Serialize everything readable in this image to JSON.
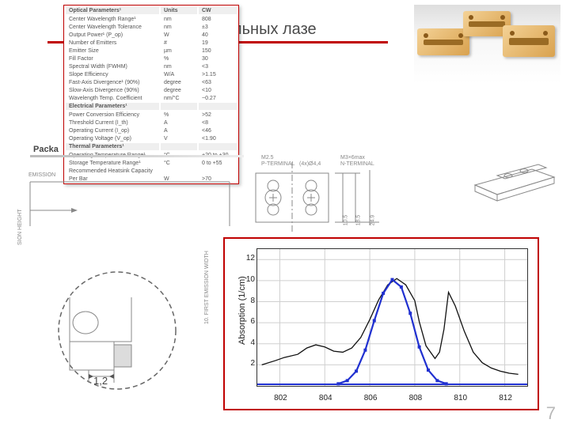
{
  "title_text": "вердотельных лазе",
  "page_number": "7",
  "colors": {
    "accent": "#c00000",
    "spec_text": "#555",
    "title_text": "#4a4a4a"
  },
  "package_label": "Packa",
  "drawing_labels": {
    "emission": "EMISSION",
    "sion_height": "SION HEIGHT",
    "first_emission_width": "10. FIRST EMISSION WIDTH",
    "inset_dim": "1,2",
    "p_terminal": "P-TERMINAL",
    "n_terminal": "N-TERMINAL",
    "m25": "M2.5",
    "m3": "M3×6max",
    "d44": "(4x)Ø4,4",
    "dim_105": "10.5",
    "dim_185": "18.5",
    "dim_249": "24.9"
  },
  "spec": {
    "sections": [
      {
        "title": "Optical Parameters¹",
        "unitHeader": "Units",
        "valHeader": "CW",
        "rows": [
          [
            "Center Wavelength Range¹",
            "nm",
            "808"
          ],
          [
            "Center Wavelength Tolerance",
            "nm",
            "±3"
          ],
          [
            "Output Power¹ (P_op)",
            "W",
            "40"
          ],
          [
            "Number of Emitters",
            "#",
            "19"
          ],
          [
            "Emitter Size",
            "µm",
            "150"
          ],
          [
            "Fill Factor",
            "%",
            "30"
          ],
          [
            "Spectral Width (FWHM)",
            "nm",
            "<3"
          ],
          [
            "Slope Efficiency",
            "W/A",
            ">1.15"
          ],
          [
            "Fast-Axis Divergence¹ (90%)",
            "degree",
            "<63"
          ],
          [
            "Slow-Axis Divergence (90%)",
            "degree",
            "<10"
          ],
          [
            "Wavelength Temp. Coefficient",
            "nm/°C",
            "~0.27"
          ]
        ]
      },
      {
        "title": "Electrical Parameters¹",
        "rows": [
          [
            "Power Conversion Efficiency",
            "%",
            ">52"
          ],
          [
            "Threshold Current (I_th)",
            "A",
            "<8"
          ],
          [
            "Operating Current (I_op)",
            "A",
            "<46"
          ],
          [
            "Operating Voltage (V_op)",
            "V",
            "<1.90"
          ]
        ]
      },
      {
        "title": "Thermal Parameters¹",
        "rows": [
          [
            "Operating Temperature Range¹",
            "°C",
            "+20 to +30"
          ],
          [
            "Storage Temperature Range¹",
            "°C",
            "0 to +55"
          ],
          [
            "Recommended Heatsink Capacity",
            "",
            ""
          ],
          [
            "Per Bar",
            "W",
            ">70"
          ]
        ]
      }
    ]
  },
  "chart": {
    "type": "line",
    "ylabel": "Absorption (1/cm)",
    "xlim": [
      801,
      813
    ],
    "ylim": [
      0,
      13
    ],
    "xticks": [
      802,
      804,
      806,
      808,
      810,
      812
    ],
    "yticks": [
      2,
      4,
      6,
      8,
      10,
      12
    ],
    "background": "#ffffff",
    "grid_color": "#cfcfcf",
    "series": [
      {
        "name": "absorption-black",
        "color": "#111",
        "width": 1.3,
        "x": [
          801.2,
          801.8,
          802.2,
          802.8,
          803.2,
          803.6,
          804.0,
          804.4,
          804.8,
          805.2,
          805.6,
          806.0,
          806.4,
          806.8,
          807.2,
          807.6,
          808.0,
          808.2,
          808.5,
          808.9,
          809.1,
          809.3,
          809.5,
          809.8,
          810.2,
          810.6,
          811.0,
          811.4,
          811.8,
          812.2,
          812.6
        ],
        "y": [
          2.0,
          2.4,
          2.7,
          3.0,
          3.6,
          3.9,
          3.7,
          3.3,
          3.2,
          3.6,
          4.6,
          6.3,
          8.2,
          9.6,
          10.2,
          9.6,
          8.1,
          6.1,
          3.8,
          2.6,
          3.2,
          5.4,
          8.9,
          7.6,
          5.2,
          3.2,
          2.2,
          1.7,
          1.4,
          1.2,
          1.1
        ]
      },
      {
        "name": "emission-blue",
        "color": "#2030d0",
        "width": 2.2,
        "markers": true,
        "x": [
          804.6,
          805.0,
          805.4,
          805.8,
          806.2,
          806.6,
          807.0,
          807.4,
          807.8,
          808.2,
          808.6,
          809.0,
          809.4
        ],
        "y": [
          0.2,
          0.5,
          1.4,
          3.4,
          6.2,
          8.8,
          10.1,
          9.4,
          6.9,
          3.7,
          1.5,
          0.5,
          0.2
        ]
      }
    ],
    "blue_baseline_y": 0.15
  }
}
